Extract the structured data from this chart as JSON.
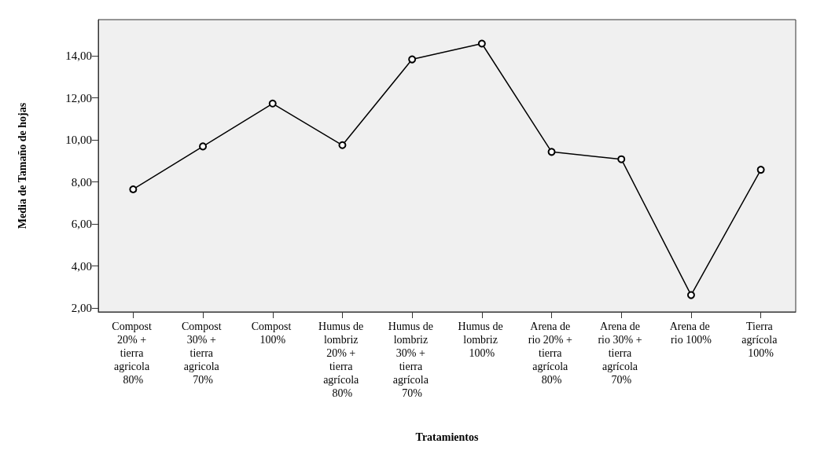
{
  "chart_data": {
    "type": "line",
    "xlabel": "Tratamientos",
    "ylabel": "Media de Tamaño de hojas",
    "categories": [
      "Compost 20% + tierra agricola 80%",
      "Compost 30% + tierra agricola 70%",
      "Compost 100%",
      "Humus de lombriz 20% + tierra agrícola 80%",
      "Humus de lombriz 30% + tierra agrícola 70%",
      "Humus de lombriz 100%",
      "Arena de rio 20% + tierra agrícola 80%",
      "Arena de rio 30% + tierra agrícola 70%",
      "Arena de rio 100%",
      "Tierra agrícola 100%"
    ],
    "values": [
      7.65,
      9.69,
      11.73,
      9.75,
      13.83,
      14.58,
      9.43,
      9.08,
      2.62,
      8.58
    ],
    "color": "#000000",
    "marker": "circle",
    "line_style": "solid",
    "grid": false,
    "ylim": [
      1.82,
      15.72
    ],
    "yticks": [
      {
        "value": 2,
        "label": "2,00"
      },
      {
        "value": 4,
        "label": "4,00"
      },
      {
        "value": 6,
        "label": "6,00"
      },
      {
        "value": 8,
        "label": "8,00"
      },
      {
        "value": 10,
        "label": "10,00"
      },
      {
        "value": 12,
        "label": "12,00"
      },
      {
        "value": 14,
        "label": "14,00"
      }
    ]
  }
}
